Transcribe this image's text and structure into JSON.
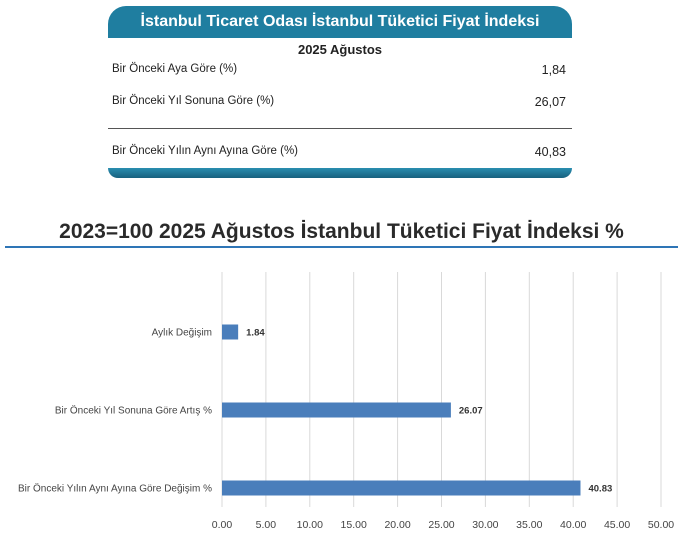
{
  "table": {
    "title": "İstanbul Ticaret Odası İstanbul Tüketici Fiyat İndeksi",
    "period": "2025 Ağustos",
    "rows": [
      {
        "label": "Bir Önceki Aya Göre (%)",
        "value": "1,84"
      },
      {
        "label": "Bir Önceki Yıl Sonuna Göre (%)",
        "value": "26,07"
      },
      {
        "label": "Bir Önceki Yılın Aynı Ayına Göre (%)",
        "value": "40,83"
      }
    ],
    "colors": {
      "header": "#1f7ea0",
      "footer": "#1b6f91"
    }
  },
  "chart_data": {
    "type": "bar",
    "orientation": "horizontal",
    "title": "2023=100 2025 Ağustos İstanbul Tüketici Fiyat İndeksi %",
    "categories": [
      "Aylık Değişim",
      "Bir Önceki Yıl Sonuna Göre Artış %",
      "Bir Önceki Yılın Aynı Ayına Göre Değişim %"
    ],
    "values": [
      1.84,
      26.07,
      40.83
    ],
    "value_labels": [
      "1.84",
      "26.07",
      "40.83"
    ],
    "xlim": [
      0,
      50
    ],
    "ticks": [
      "0.00",
      "5.00",
      "10.00",
      "15.00",
      "20.00",
      "25.00",
      "30.00",
      "35.00",
      "40.00",
      "45.00",
      "50.00"
    ],
    "grid": "vertical",
    "bar_color": "#4a7ebb",
    "xlabel": "",
    "ylabel": ""
  }
}
